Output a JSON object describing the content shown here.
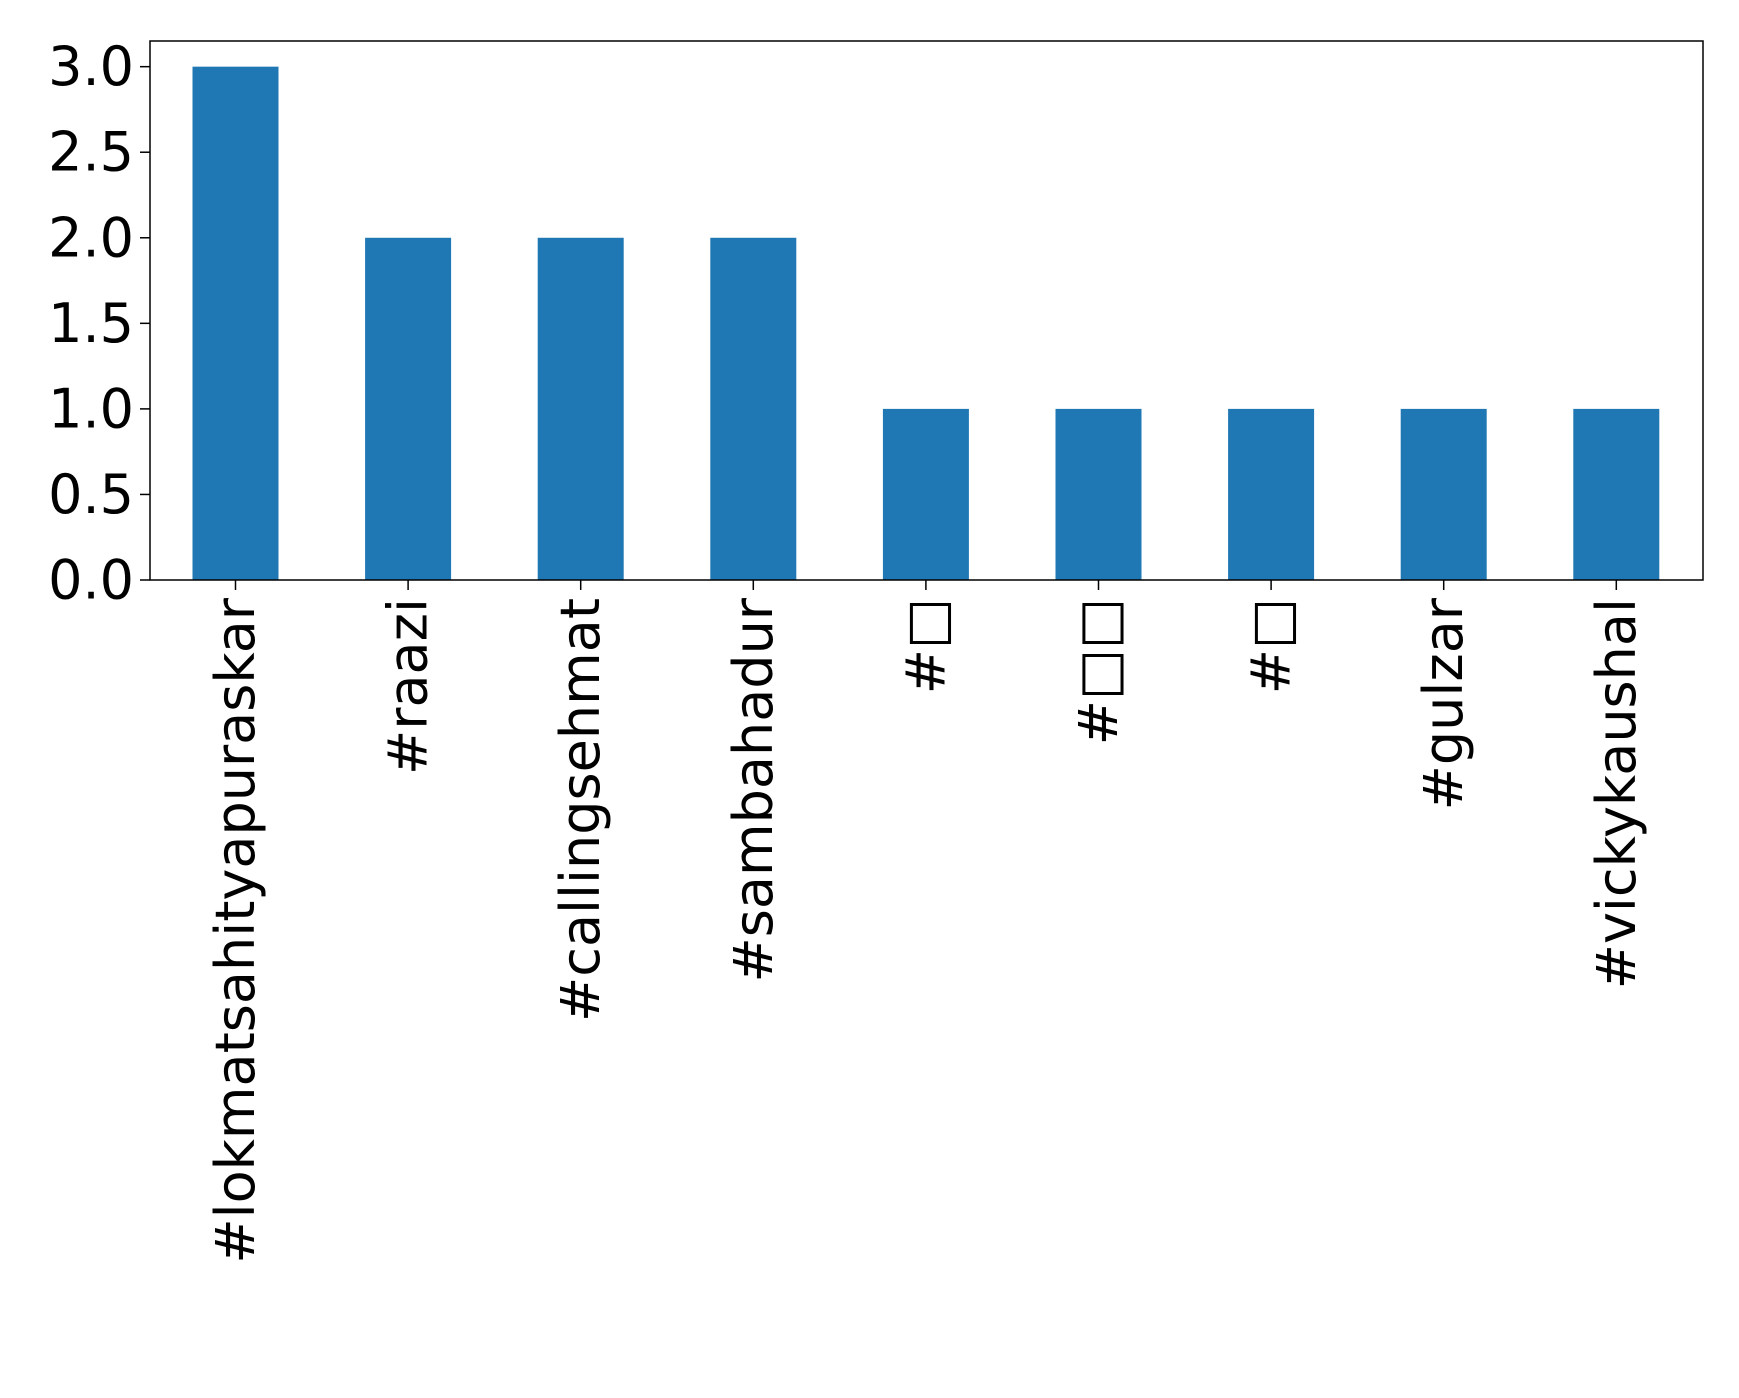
{
  "chart_data": {
    "type": "bar",
    "categories": [
      "#lokmatsahityapuraskar",
      "#raazi",
      "#callingsehmat",
      "#sambahadur",
      "#□",
      "#□□",
      "#□",
      "#gulzar",
      "#vickykaushal"
    ],
    "values": [
      3,
      2,
      2,
      2,
      1,
      1,
      1,
      1,
      1
    ],
    "title": "",
    "xlabel": "",
    "ylabel": "",
    "ylim": [
      0,
      3.15
    ],
    "yticks": [
      "0.0",
      "0.5",
      "1.0",
      "1.5",
      "2.0",
      "2.5",
      "3.0"
    ],
    "grid": false,
    "bar_color": "#1f77b4"
  }
}
